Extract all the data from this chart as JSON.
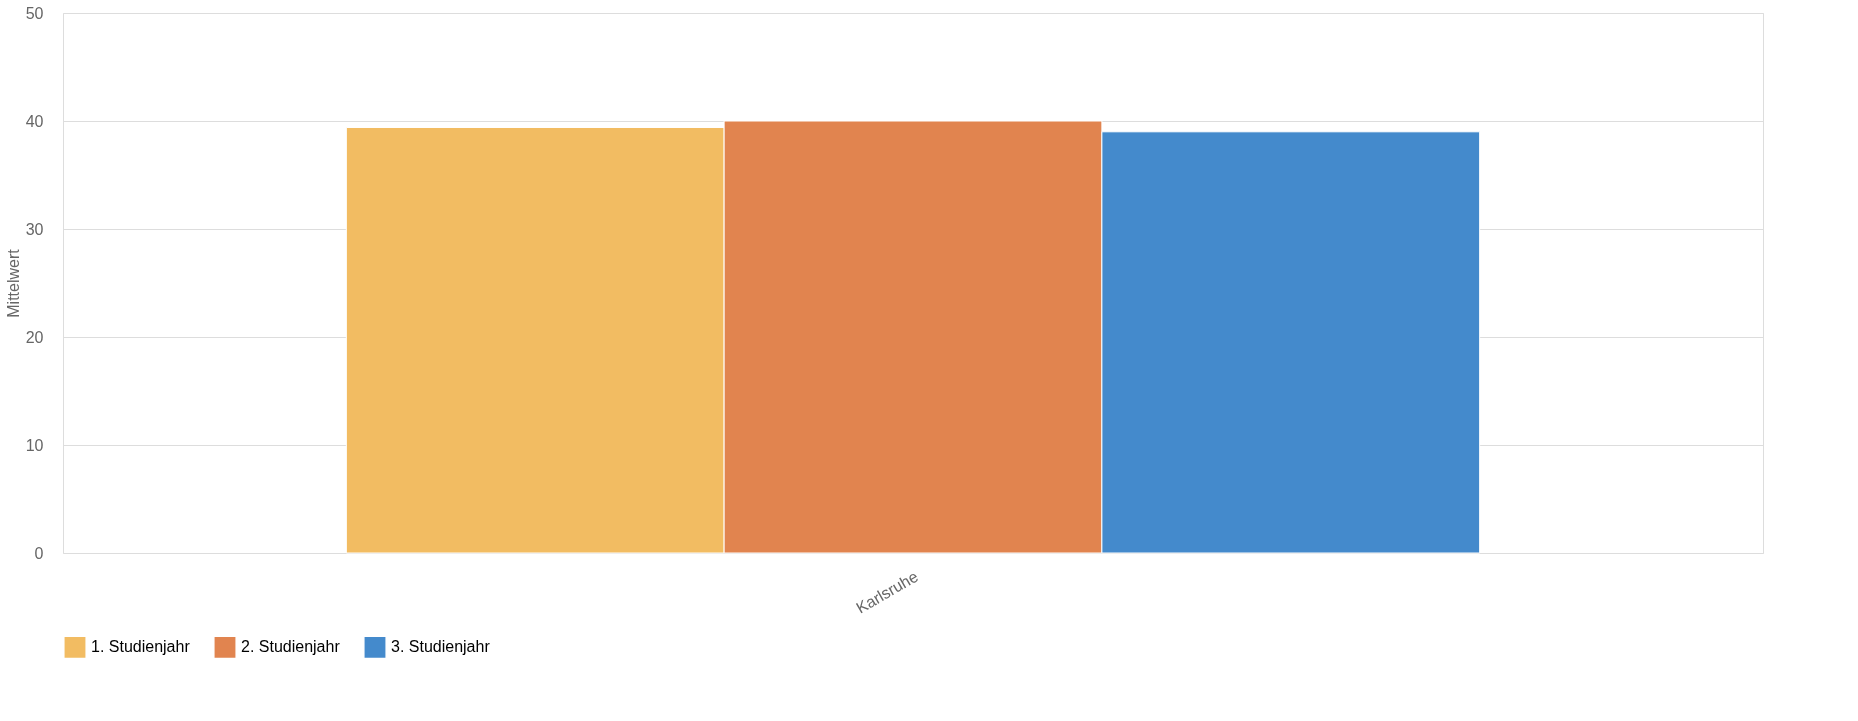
{
  "chart_data": {
    "type": "bar",
    "ylabel": "Mittelwert",
    "categories": [
      "Karlsruhe"
    ],
    "series": [
      {
        "name": "1. Studienjahr",
        "color": "#f2bc62",
        "values": [
          39.4
        ]
      },
      {
        "name": "2. Studienjahr",
        "color": "#e1844f",
        "values": [
          40.0
        ]
      },
      {
        "name": "3. Studienjahr",
        "color": "#448acc",
        "values": [
          39.0
        ]
      }
    ],
    "ylim": [
      0,
      50
    ],
    "yticks": [
      0,
      10,
      20,
      30,
      40,
      50
    ],
    "grid": "y",
    "legend": "bottom"
  }
}
